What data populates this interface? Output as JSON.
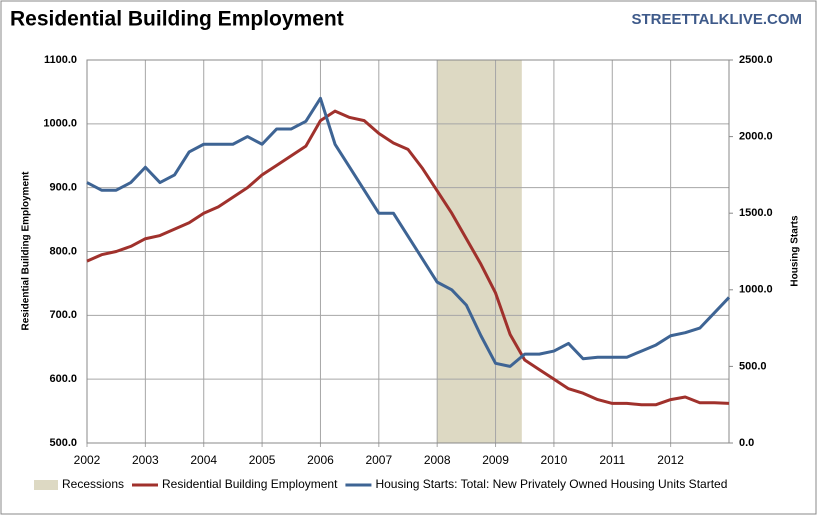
{
  "chart_data": {
    "type": "line",
    "title": "Residential Building Employment",
    "source": "STREETTALKLIVE.COM",
    "y_label": "Residential Building  Employment",
    "y2_label": "Housing Starts",
    "x": [
      2002.0,
      2002.25,
      2002.5,
      2002.75,
      2003.0,
      2003.25,
      2003.5,
      2003.75,
      2004.0,
      2004.25,
      2004.5,
      2004.75,
      2005.0,
      2005.25,
      2005.5,
      2005.75,
      2006.0,
      2006.25,
      2006.5,
      2006.75,
      2007.0,
      2007.25,
      2007.5,
      2007.75,
      2008.0,
      2008.25,
      2008.5,
      2008.75,
      2009.0,
      2009.25,
      2009.5,
      2009.75,
      2010.0,
      2010.25,
      2010.5,
      2010.75,
      2011.0,
      2011.25,
      2011.5,
      2011.75,
      2012.0,
      2012.25,
      2012.5,
      2012.75,
      2013.0
    ],
    "xlim": [
      2002,
      2013
    ],
    "xticks": [
      2002,
      2003,
      2004,
      2005,
      2006,
      2007,
      2008,
      2009,
      2010,
      2011,
      2012
    ],
    "ylim": [
      500,
      1100
    ],
    "yticks": [
      {
        "value": 500,
        "label": "500.0"
      },
      {
        "value": 600,
        "label": "600.0"
      },
      {
        "value": 700,
        "label": "700.0"
      },
      {
        "value": 800,
        "label": "800.0"
      },
      {
        "value": 900,
        "label": "900.0"
      },
      {
        "value": 1000,
        "label": "1000.0"
      },
      {
        "value": 1100,
        "label": "1100.0"
      }
    ],
    "y2lim": [
      0,
      2500
    ],
    "y2ticks": [
      {
        "value": 0,
        "label": "0.0"
      },
      {
        "value": 500,
        "label": "500.0"
      },
      {
        "value": 1000,
        "label": "1000.0"
      },
      {
        "value": 1500,
        "label": "1500.0"
      },
      {
        "value": 2000,
        "label": "2000.0"
      },
      {
        "value": 2500,
        "label": "2500.0"
      }
    ],
    "grid": true,
    "recession": {
      "name": "Recessions",
      "color": "#ddd9c3",
      "start": 2008.0,
      "end": 2009.45
    },
    "series": [
      {
        "name": "Residential Building Employment",
        "color": "#a0312c",
        "values": [
          785,
          795,
          800,
          808,
          820,
          825,
          835,
          845,
          860,
          870,
          885,
          900,
          920,
          935,
          950,
          965,
          1005,
          1020,
          1010,
          1005,
          985,
          970,
          960,
          930,
          895,
          860,
          820,
          780,
          735,
          670,
          630,
          615,
          600,
          585,
          578,
          568,
          562,
          562,
          560,
          560,
          568,
          572,
          563,
          563,
          562
        ]
      },
      {
        "name": "Housing Starts: Total: New Privately Owned Housing Units Started",
        "color": "#3e6494",
        "axis": "y2",
        "values": [
          1700,
          1650,
          1650,
          1700,
          1800,
          1700,
          1750,
          1900,
          1950,
          1950,
          1950,
          2000,
          1950,
          2050,
          2050,
          2100,
          2250,
          1950,
          1800,
          1650,
          1500,
          1500,
          1350,
          1200,
          1050,
          1000,
          900,
          700,
          520,
          500,
          580,
          580,
          600,
          650,
          550,
          560,
          560,
          560,
          600,
          640,
          700,
          720,
          750,
          850,
          950
        ]
      }
    ]
  }
}
